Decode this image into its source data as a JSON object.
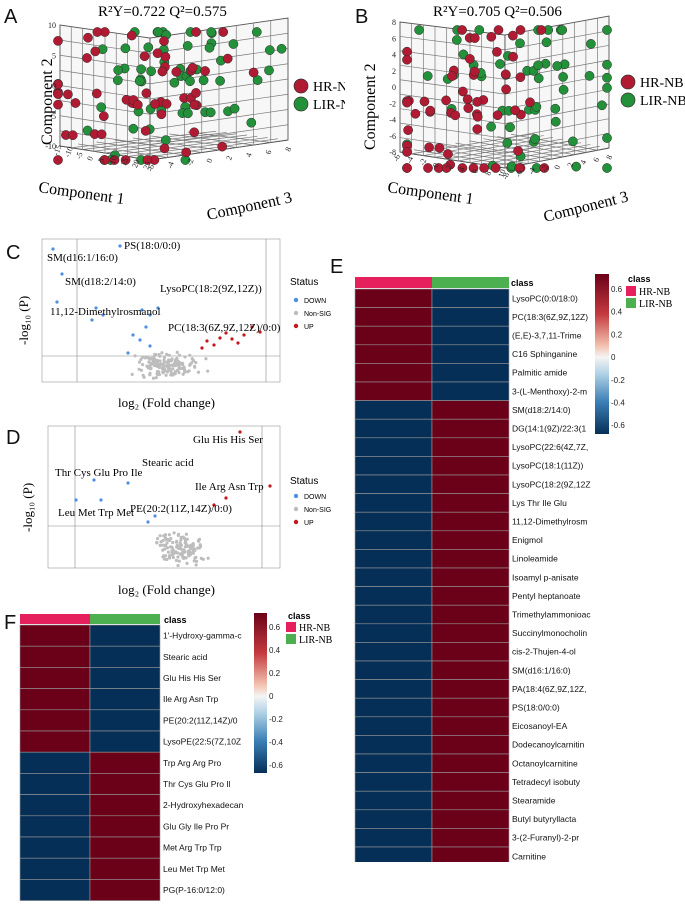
{
  "panel_labels": {
    "a": "A",
    "b": "B",
    "c": "C",
    "d": "D",
    "e": "E",
    "f": "F"
  },
  "colors": {
    "hr": "#b01a32",
    "lir": "#23913a",
    "down": "#4d8fe0",
    "nonsig": "#bdbdbd",
    "up": "#c4161c",
    "hm_high": "#6b0119",
    "hm_low": "#062f57",
    "class_hr": "#e6205c",
    "class_lir": "#4caf50"
  },
  "chart_data": [
    {
      "id": "A",
      "type": "scatter",
      "projection": "3d",
      "annotation": "R²Y=0.722    Q²=0.575",
      "xlabel": "Component 1",
      "ylabel": "Component 2",
      "zlabel": "Component 3",
      "z_ticks": [
        "10",
        "5",
        "0",
        "-5",
        "-10"
      ],
      "x_ticks": [
        "-15",
        "-10",
        "-5",
        "0",
        "5",
        "10",
        "15",
        "20",
        "25"
      ],
      "y_ticks": [
        "-6",
        "-4",
        "-2",
        "0",
        "2",
        "4",
        "6",
        "8"
      ],
      "legend": [
        "HR-NB",
        "LIR-NB"
      ]
    },
    {
      "id": "B",
      "type": "scatter",
      "projection": "3d",
      "annotation": "R²Y=0.705    Q²=0.506",
      "xlabel": "Component 1",
      "ylabel": "Component 2",
      "zlabel": "Component 3",
      "z_ticks": [
        "8",
        "6",
        "4",
        "2",
        "0",
        "-2",
        "-4",
        "-6",
        "-8"
      ],
      "x_ticks": [
        "-6",
        "-4",
        "-2",
        "0",
        "2",
        "4",
        "6",
        "8",
        "10"
      ],
      "y_ticks": [
        "-8",
        "-6",
        "-4",
        "-2",
        "0",
        "2",
        "4",
        "6",
        "8"
      ],
      "legend": [
        "HR-NB",
        "LIR-NB"
      ]
    },
    {
      "id": "C",
      "type": "scatter",
      "xlabel": "log₂ (Fold change)",
      "ylabel": "-log₁₀ (P)",
      "legend_title": "Status",
      "legend": [
        "DOWN",
        "Non-SIG",
        "UP"
      ],
      "annotations": [
        "PS(18:0/0:0)",
        "SM(d16:1/16:0)",
        "SM(d18:2/14:0)",
        "LysoPC(18:2(9Z,12Z))",
        "11,12-Dimethylrosmanol",
        "PC(18:3(6Z,9Z,12Z)/0:0)"
      ]
    },
    {
      "id": "D",
      "type": "scatter",
      "xlabel": "log₂ (Fold change)",
      "ylabel": "-log₁₀ (P)",
      "legend_title": "Status",
      "legend": [
        "DOWN",
        "Non-SIG",
        "UP"
      ],
      "annotations": [
        "Glu His His Ser",
        "Stearic acid",
        "Thr Cys Glu Pro Ile",
        "Ile Arg Asn Trp",
        "Leu Met Trp Met",
        "PE(20:2(11Z,14Z)/0:0)"
      ]
    },
    {
      "id": "E",
      "type": "heatmap",
      "class_header": "class",
      "columns": [
        "HR-NB",
        "LIR-NB"
      ],
      "legend_title": "class",
      "legend": [
        "HR-NB",
        "LIR-NB"
      ],
      "scale_ticks": [
        "0.6",
        "0.4",
        "0.2",
        "0",
        "-0.2",
        "-0.4",
        "-0.6"
      ],
      "rows": [
        "LysoPC(0:0/18:0)",
        "PC(18:3(6Z,9Z,12Z)",
        "(E,E)-3,7,11-Trime",
        "C16 Sphinganine",
        "Palmitic amide",
        "3-(L-Menthoxy)-2-m",
        "SM(d18:2/14:0)",
        "DG(14:1(9Z)/22:3(1",
        "LysoPC(22:6(4Z,7Z,",
        "LysoPC(18:1(11Z))",
        "LysoPC(18:2(9Z,12Z",
        "Lys Thr Ile Glu",
        "11,12-Dimethylrosm",
        "Enigmol",
        "Linoleamide",
        "Isoamyl p-anisate",
        "Pentyl heptanoate",
        "Trimethylammonioac",
        "Succinylmonocholin",
        "cis-2-Thujen-4-ol",
        "SM(d16:1/16:0)",
        "PA(18:4(6Z,9Z,12Z,",
        "PS(18:0/0:0)",
        "Eicosanoyl-EA",
        "Dodecanoylcarnitin",
        "Octanoylcarnitine",
        "Tetradecyl isobuty",
        "Stearamide",
        "Butyl butyryllacta",
        "3-(2-Furanyl)-2-pr",
        "Carnitine"
      ],
      "values": [
        [
          0.6,
          -0.6
        ],
        [
          0.6,
          -0.6
        ],
        [
          0.6,
          -0.6
        ],
        [
          0.6,
          -0.6
        ],
        [
          0.6,
          -0.6
        ],
        [
          0.6,
          -0.6
        ],
        [
          -0.6,
          0.6
        ],
        [
          -0.6,
          0.6
        ],
        [
          -0.6,
          0.6
        ],
        [
          -0.6,
          0.6
        ],
        [
          -0.6,
          0.6
        ],
        [
          -0.6,
          0.6
        ],
        [
          -0.6,
          0.6
        ],
        [
          -0.6,
          0.6
        ],
        [
          -0.6,
          0.6
        ],
        [
          -0.6,
          0.6
        ],
        [
          -0.6,
          0.6
        ],
        [
          -0.6,
          0.6
        ],
        [
          -0.6,
          0.6
        ],
        [
          -0.6,
          0.6
        ],
        [
          -0.6,
          0.6
        ],
        [
          -0.6,
          0.6
        ],
        [
          -0.6,
          0.6
        ],
        [
          -0.6,
          0.6
        ],
        [
          -0.6,
          0.6
        ],
        [
          -0.6,
          0.6
        ],
        [
          -0.6,
          0.6
        ],
        [
          -0.6,
          0.6
        ],
        [
          -0.6,
          0.6
        ],
        [
          -0.6,
          0.6
        ],
        [
          -0.6,
          0.6
        ]
      ]
    },
    {
      "id": "F",
      "type": "heatmap",
      "class_header": "class",
      "columns": [
        "HR-NB",
        "LIR-NB"
      ],
      "legend_title": "class",
      "legend": [
        "HR-NB",
        "LIR-NB"
      ],
      "scale_ticks": [
        "0.6",
        "0.4",
        "0.2",
        "0",
        "-0.2",
        "-0.4",
        "-0.6"
      ],
      "rows": [
        "1'-Hydroxy-gamma-c",
        "Stearic acid",
        "Glu His His Ser",
        "Ile Arg Asn Trp",
        "PE(20:2(11Z,14Z)/0",
        "LysoPE(22:5(7Z,10Z",
        "Trp Arg Arg Pro",
        "Thr Cys Glu Pro Il",
        "2-Hydroxyhexadecan",
        "Glu Gly Ile Pro Pr",
        "Met Arg Trp Trp",
        "Leu Met Trp Met",
        "PG(P-16:0/12:0)"
      ],
      "values": [
        [
          0.6,
          -0.6
        ],
        [
          0.6,
          -0.6
        ],
        [
          0.6,
          -0.6
        ],
        [
          0.6,
          -0.6
        ],
        [
          0.6,
          -0.6
        ],
        [
          0.6,
          -0.6
        ],
        [
          -0.6,
          0.6
        ],
        [
          -0.6,
          0.6
        ],
        [
          -0.6,
          0.6
        ],
        [
          -0.6,
          0.6
        ],
        [
          -0.6,
          0.6
        ],
        [
          -0.6,
          0.6
        ],
        [
          -0.6,
          0.6
        ]
      ]
    }
  ]
}
